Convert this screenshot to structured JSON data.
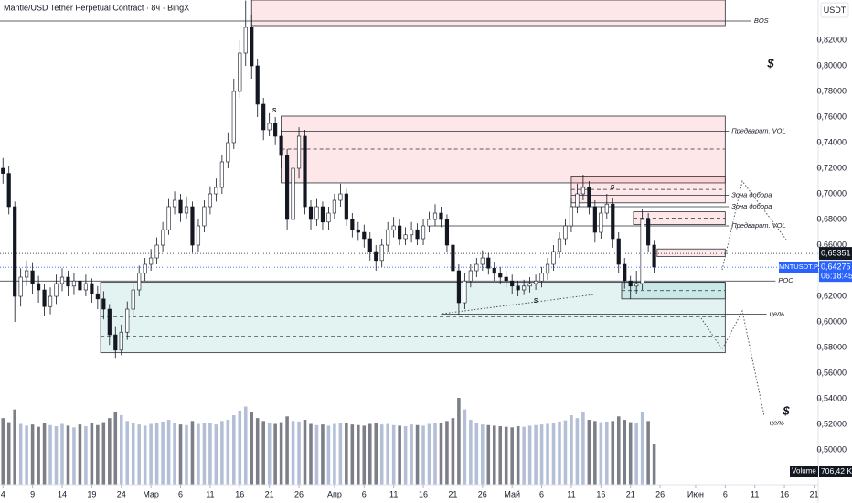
{
  "chart_data": {
    "type": "candlestick",
    "title": "Mantle/USD Tether Perpetual Contract · 8ч · BingX",
    "axis_unit": "USDT",
    "xlim": [
      -0.5,
      137.7
    ],
    "ylim": [
      0.4729,
      0.8514
    ],
    "xticks": [
      {
        "value": 0,
        "label": "4"
      },
      {
        "value": 5,
        "label": "9"
      },
      {
        "value": 10,
        "label": "14"
      },
      {
        "value": 15,
        "label": "19"
      },
      {
        "value": 20,
        "label": "24"
      },
      {
        "value": 25,
        "label": "Мар"
      },
      {
        "value": 30,
        "label": "6"
      },
      {
        "value": 35,
        "label": "11"
      },
      {
        "value": 40,
        "label": "16"
      },
      {
        "value": 45,
        "label": "21"
      },
      {
        "value": 50,
        "label": "26"
      },
      {
        "value": 56,
        "label": "Апр"
      },
      {
        "value": 61,
        "label": "6"
      },
      {
        "value": 66,
        "label": "11"
      },
      {
        "value": 71,
        "label": "16"
      },
      {
        "value": 76,
        "label": "21"
      },
      {
        "value": 81,
        "label": "26"
      },
      {
        "value": 86,
        "label": "Май"
      },
      {
        "value": 91,
        "label": "6"
      },
      {
        "value": 96,
        "label": "11"
      },
      {
        "value": 101,
        "label": "16"
      },
      {
        "value": 106,
        "label": "21"
      },
      {
        "value": 111,
        "label": "26"
      },
      {
        "value": 117,
        "label": "Июн"
      },
      {
        "value": 122,
        "label": "6"
      },
      {
        "value": 127,
        "label": "11"
      },
      {
        "value": 132,
        "label": "16"
      },
      {
        "value": 137,
        "label": "21"
      }
    ],
    "yticks": [
      {
        "value": 0.82,
        "label": "0,82000"
      },
      {
        "value": 0.8,
        "label": "0,80000"
      },
      {
        "value": 0.78,
        "label": "0,78000"
      },
      {
        "value": 0.76,
        "label": "0,76000"
      },
      {
        "value": 0.74,
        "label": "0,74000"
      },
      {
        "value": 0.72,
        "label": "0,72000"
      },
      {
        "value": 0.7,
        "label": "0,70000"
      },
      {
        "value": 0.68,
        "label": "0,68000"
      },
      {
        "value": 0.66,
        "label": "0,66000"
      },
      {
        "value": 0.64,
        "label": "0,64000"
      },
      {
        "value": 0.62,
        "label": "0,62000"
      },
      {
        "value": 0.6,
        "label": "0,60000"
      },
      {
        "value": 0.58,
        "label": "0,58000"
      },
      {
        "value": 0.56,
        "label": "0,56000"
      },
      {
        "value": 0.54,
        "label": "0,54000"
      },
      {
        "value": 0.52,
        "label": "0,52000"
      },
      {
        "value": 0.5,
        "label": "0,50000"
      }
    ],
    "open": [
      0.72,
      0.716,
      0.69,
      0.62,
      0.635,
      0.64,
      0.63,
      0.625,
      0.612,
      0.62,
      0.63,
      0.635,
      0.628,
      0.632,
      0.625,
      0.63,
      0.622,
      0.618,
      0.61,
      0.59,
      0.578,
      0.592,
      0.61,
      0.625,
      0.638,
      0.645,
      0.65,
      0.66,
      0.672,
      0.69,
      0.695,
      0.685,
      0.69,
      0.66,
      0.675,
      0.69,
      0.7,
      0.705,
      0.725,
      0.74,
      0.78,
      0.81,
      0.83,
      0.8,
      0.77,
      0.75,
      0.755,
      0.745,
      0.73,
      0.68,
      0.72,
      0.745,
      0.69,
      0.68,
      0.69,
      0.678,
      0.685,
      0.695,
      0.7,
      0.68,
      0.672,
      0.67,
      0.665,
      0.655,
      0.648,
      0.66,
      0.672,
      0.675,
      0.665,
      0.668,
      0.672,
      0.665,
      0.675,
      0.68,
      0.685,
      0.68,
      0.66,
      0.64,
      0.615,
      0.632,
      0.64,
      0.645,
      0.65,
      0.642,
      0.638,
      0.635,
      0.632,
      0.628,
      0.625,
      0.628,
      0.63,
      0.632,
      0.638,
      0.645,
      0.655,
      0.665,
      0.675,
      0.69,
      0.7,
      0.705,
      0.69,
      0.67,
      0.685,
      0.692,
      0.665,
      0.645,
      0.632,
      0.628,
      0.63,
      0.68,
      0.66
    ],
    "high": [
      0.728,
      0.722,
      0.694,
      0.642,
      0.648,
      0.646,
      0.636,
      0.63,
      0.627,
      0.637,
      0.642,
      0.64,
      0.638,
      0.638,
      0.637,
      0.634,
      0.628,
      0.624,
      0.614,
      0.596,
      0.598,
      0.616,
      0.63,
      0.644,
      0.65,
      0.657,
      0.666,
      0.678,
      0.696,
      0.702,
      0.7,
      0.698,
      0.694,
      0.68,
      0.695,
      0.706,
      0.712,
      0.73,
      0.748,
      0.79,
      0.82,
      0.851,
      0.84,
      0.805,
      0.775,
      0.763,
      0.76,
      0.75,
      0.735,
      0.728,
      0.752,
      0.75,
      0.695,
      0.696,
      0.694,
      0.69,
      0.7,
      0.708,
      0.704,
      0.685,
      0.678,
      0.676,
      0.67,
      0.66,
      0.665,
      0.678,
      0.682,
      0.68,
      0.674,
      0.678,
      0.677,
      0.68,
      0.686,
      0.692,
      0.69,
      0.684,
      0.664,
      0.645,
      0.638,
      0.645,
      0.65,
      0.656,
      0.654,
      0.647,
      0.643,
      0.64,
      0.637,
      0.632,
      0.633,
      0.635,
      0.637,
      0.643,
      0.65,
      0.66,
      0.67,
      0.68,
      0.697,
      0.708,
      0.715,
      0.71,
      0.695,
      0.69,
      0.7,
      0.697,
      0.67,
      0.65,
      0.636,
      0.64,
      0.688,
      0.685,
      0.664
    ],
    "low": [
      0.708,
      0.684,
      0.6,
      0.612,
      0.628,
      0.622,
      0.615,
      0.605,
      0.606,
      0.614,
      0.624,
      0.62,
      0.621,
      0.618,
      0.62,
      0.615,
      0.61,
      0.602,
      0.582,
      0.572,
      0.574,
      0.586,
      0.604,
      0.62,
      0.632,
      0.64,
      0.645,
      0.655,
      0.668,
      0.684,
      0.678,
      0.68,
      0.654,
      0.655,
      0.67,
      0.684,
      0.694,
      0.7,
      0.72,
      0.735,
      0.775,
      0.8,
      0.79,
      0.76,
      0.742,
      0.745,
      0.738,
      0.72,
      0.672,
      0.676,
      0.712,
      0.684,
      0.672,
      0.675,
      0.672,
      0.672,
      0.68,
      0.69,
      0.675,
      0.666,
      0.664,
      0.658,
      0.648,
      0.64,
      0.643,
      0.655,
      0.666,
      0.66,
      0.66,
      0.662,
      0.66,
      0.66,
      0.67,
      0.675,
      0.674,
      0.655,
      0.632,
      0.606,
      0.61,
      0.627,
      0.635,
      0.64,
      0.637,
      0.632,
      0.63,
      0.627,
      0.622,
      0.62,
      0.621,
      0.623,
      0.625,
      0.627,
      0.633,
      0.64,
      0.65,
      0.66,
      0.67,
      0.685,
      0.695,
      0.684,
      0.662,
      0.665,
      0.68,
      0.658,
      0.638,
      0.626,
      0.618,
      0.622,
      0.625,
      0.655,
      0.638
    ],
    "close": [
      0.716,
      0.69,
      0.62,
      0.635,
      0.64,
      0.63,
      0.625,
      0.612,
      0.62,
      0.63,
      0.635,
      0.628,
      0.632,
      0.625,
      0.63,
      0.622,
      0.618,
      0.61,
      0.59,
      0.578,
      0.592,
      0.61,
      0.625,
      0.638,
      0.645,
      0.65,
      0.66,
      0.672,
      0.69,
      0.695,
      0.685,
      0.69,
      0.66,
      0.675,
      0.69,
      0.7,
      0.705,
      0.725,
      0.74,
      0.78,
      0.81,
      0.83,
      0.8,
      0.77,
      0.75,
      0.755,
      0.745,
      0.73,
      0.68,
      0.72,
      0.745,
      0.69,
      0.68,
      0.69,
      0.678,
      0.685,
      0.695,
      0.7,
      0.68,
      0.672,
      0.67,
      0.665,
      0.655,
      0.648,
      0.66,
      0.672,
      0.675,
      0.665,
      0.668,
      0.672,
      0.665,
      0.675,
      0.68,
      0.685,
      0.68,
      0.66,
      0.64,
      0.615,
      0.632,
      0.64,
      0.645,
      0.65,
      0.642,
      0.638,
      0.635,
      0.632,
      0.628,
      0.625,
      0.628,
      0.63,
      0.632,
      0.638,
      0.645,
      0.655,
      0.665,
      0.675,
      0.69,
      0.7,
      0.705,
      0.69,
      0.67,
      0.685,
      0.692,
      0.665,
      0.645,
      0.632,
      0.628,
      0.63,
      0.68,
      0.66,
      0.643
    ],
    "candle_colors": {
      "up": "#ffffff",
      "down": "#131722",
      "outline": "#131722"
    },
    "volume": {
      "name": "Volume",
      "value_label": "706,42 K",
      "up_color": "#b2bfd6",
      "down_color": "#7c7f88",
      "values": [
        1150,
        1080,
        1300,
        1050,
        1020,
        1040,
        1000,
        1060,
        1030,
        1010,
        1050,
        1020,
        990,
        1040,
        1010,
        1060,
        1030,
        1080,
        1150,
        1250,
        1200,
        1100,
        1060,
        1040,
        1020,
        1050,
        1070,
        1090,
        1120,
        1060,
        1040,
        1030,
        1100,
        1050,
        1070,
        1060,
        1040,
        1100,
        1120,
        1200,
        1280,
        1350,
        1250,
        1150,
        1100,
        1060,
        1050,
        1080,
        1180,
        1100,
        1090,
        1120,
        1050,
        1030,
        1040,
        1020,
        1050,
        1060,
        1070,
        1040,
        1030,
        1020,
        1050,
        1060,
        1040,
        1050,
        1030,
        1020,
        1010,
        1040,
        1030,
        1020,
        1050,
        1060,
        1070,
        1100,
        1150,
        1500,
        1300,
        1120,
        1060,
        1040,
        1030,
        1020,
        1010,
        1000,
        990,
        1010,
        1000,
        1020,
        1030,
        1040,
        1050,
        1070,
        1090,
        1110,
        1200,
        1150,
        1250,
        1120,
        1100,
        1080,
        1090,
        1100,
        1180,
        1120,
        1080,
        1060,
        1250,
        1100,
        706.42
      ]
    },
    "zones": [
      {
        "x": [
          42,
          122
        ],
        "y": [
          0.8314,
          0.8514
        ],
        "kind": "supply",
        "lines": []
      },
      {
        "x": [
          47,
          122
        ],
        "y": [
          0.7086,
          0.7607
        ],
        "kind": "supply",
        "lines": [
          0.735
        ]
      },
      {
        "x": [
          96,
          122
        ],
        "y": [
          0.693,
          0.714
        ],
        "kind": "supply",
        "lines": [
          0.7035
        ]
      },
      {
        "x": [
          106.5,
          122
        ],
        "y": [
          0.676,
          0.686
        ],
        "kind": "supply",
        "lines": [
          0.681
        ]
      },
      {
        "x": [
          110.5,
          122
        ],
        "y": [
          0.651,
          0.657
        ],
        "kind": "supply",
        "lines": []
      },
      {
        "x": [
          16.5,
          122
        ],
        "y": [
          0.576,
          0.631
        ],
        "kind": "demand",
        "lines": [
          0.604,
          0.589
        ]
      },
      {
        "x": [
          104.5,
          122
        ],
        "y": [
          0.618,
          0.631
        ],
        "kind": "demand",
        "lines": [
          0.6245
        ]
      }
    ],
    "zone_colors": {
      "supply": "rgba(242,54,69,0.12)",
      "demand": "rgba(38,166,154,0.13)",
      "border": "#2a2e39"
    },
    "levels": [
      {
        "label": "BOS",
        "value": 0.835,
        "x": [
          -0.5,
          126.4
        ]
      },
      {
        "label": "Предварит. VOL",
        "value": 0.749,
        "x": [
          47,
          122.6
        ]
      },
      {
        "label": "Зона добора",
        "value": 0.699,
        "x": [
          96,
          122.6
        ]
      },
      {
        "label": "Зона добора",
        "value": 0.69,
        "x": [
          96,
          122.6
        ]
      },
      {
        "label": "Предварит. VOL",
        "value": 0.675,
        "x": [
          72,
          122.6
        ]
      },
      {
        "label": "POC",
        "value": 0.632,
        "x": [
          -0.5,
          130.5
        ]
      },
      {
        "label": "цель",
        "value": 0.606,
        "x": [
          74,
          129
        ]
      },
      {
        "label": "цель",
        "value": 0.521,
        "x": [
          -0.5,
          129
        ]
      }
    ],
    "price_tags": [
      {
        "label": "0,65351",
        "value": 0.65351,
        "color": "#131722"
      },
      {
        "label": "0,64275",
        "value": 0.64275,
        "color": "#2962ff",
        "symbol": "MNTUSDT.P",
        "timer": "06:18:45"
      }
    ],
    "annotations": [
      "$",
      "$",
      "S",
      "S",
      "S"
    ]
  }
}
